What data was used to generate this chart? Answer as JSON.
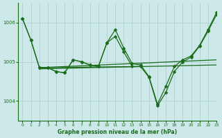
{
  "background_color": "#cce8e8",
  "grid_color": "#aacccc",
  "line_color": "#1a6b1a",
  "text_color": "#1a6b1a",
  "xlabel": "Graphe pression niveau de la mer (hPa)",
  "ylim": [
    1003.5,
    1006.5
  ],
  "xlim": [
    -0.5,
    23
  ],
  "yticks": [
    1004,
    1005,
    1006
  ],
  "xticks": [
    0,
    1,
    2,
    3,
    4,
    5,
    6,
    7,
    8,
    9,
    10,
    11,
    12,
    13,
    14,
    15,
    16,
    17,
    18,
    19,
    20,
    21,
    22,
    23
  ],
  "series": [
    {
      "x": [
        0,
        1,
        2,
        3,
        4,
        5,
        6,
        7,
        8,
        9,
        10,
        11,
        12,
        13,
        14,
        15,
        16,
        17,
        18,
        19,
        20,
        21,
        22,
        23
      ],
      "y": [
        1006.1,
        1005.55,
        1004.85,
        1004.85,
        1004.75,
        1004.72,
        1005.05,
        1005.0,
        1004.92,
        1004.88,
        1005.48,
        1005.82,
        1005.35,
        1004.95,
        1004.92,
        1004.62,
        1003.92,
        1004.38,
        1004.88,
        1005.05,
        1005.15,
        1005.42,
        1005.82,
        1006.25
      ],
      "marker": true
    },
    {
      "x": [
        0,
        1,
        2,
        3,
        4,
        5,
        6,
        7,
        8,
        9,
        10,
        11,
        12,
        13,
        14,
        15,
        16,
        17,
        18,
        19,
        20,
        21,
        22,
        23
      ],
      "y": [
        1006.1,
        1005.55,
        1004.85,
        1004.85,
        1004.75,
        1004.72,
        1005.05,
        1005.0,
        1004.92,
        1004.88,
        1005.48,
        1005.65,
        1005.25,
        1004.88,
        1004.88,
        1004.6,
        1003.88,
        1004.22,
        1004.75,
        1005.0,
        1005.12,
        1005.4,
        1005.78,
        1006.2
      ],
      "marker": true
    },
    {
      "x": [
        2,
        23
      ],
      "y": [
        1004.85,
        1005.05
      ],
      "marker": false
    },
    {
      "x": [
        2,
        23
      ],
      "y": [
        1004.82,
        1004.92
      ],
      "marker": false
    },
    {
      "x": [
        2,
        14
      ],
      "y": [
        1004.85,
        1004.88
      ],
      "marker": false
    }
  ],
  "markersize": 2.5,
  "linewidth": 0.9
}
